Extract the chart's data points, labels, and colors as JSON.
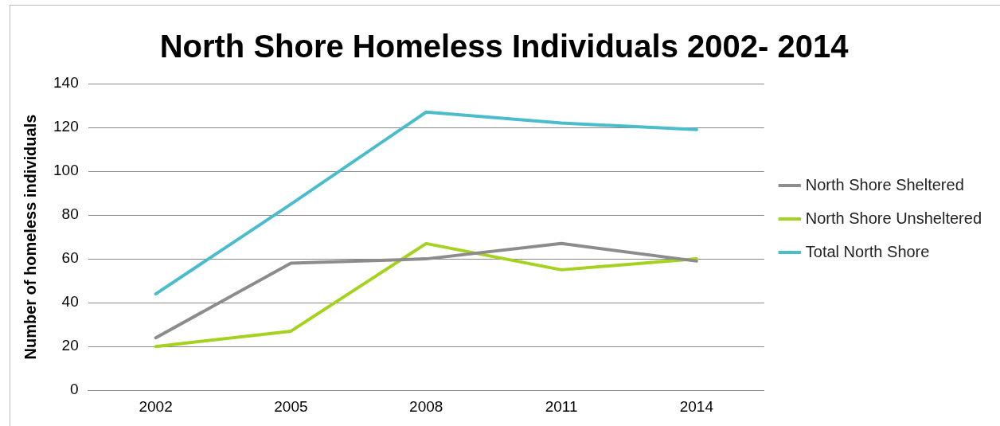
{
  "chart_data": {
    "type": "line",
    "title": "North Shore Homeless Individuals 2002- 2014",
    "ylabel": "Number of homeless individuals",
    "categories": [
      "2002",
      "2005",
      "2008",
      "2011",
      "2014"
    ],
    "series": [
      {
        "name": "North Shore Sheltered",
        "color": "#8c8c8c",
        "values": [
          24,
          58,
          60,
          67,
          59
        ]
      },
      {
        "name": "North Shore Unsheltered",
        "color": "#a5d21e",
        "values": [
          20,
          27,
          67,
          55,
          60
        ]
      },
      {
        "name": "Total North Shore",
        "color": "#4bbccc",
        "values": [
          44,
          85,
          127,
          122,
          119
        ]
      }
    ],
    "ylim": [
      0,
      140
    ],
    "yticks": [
      0,
      20,
      40,
      60,
      80,
      100,
      120,
      140
    ],
    "grid": "y",
    "legend": "right",
    "marker": "none",
    "line_style": "solid"
  }
}
